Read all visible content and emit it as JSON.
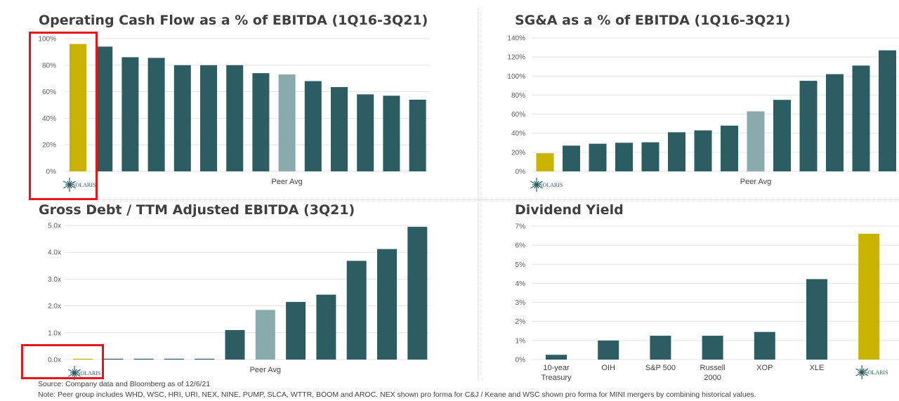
{
  "colors": {
    "peer": "#2b5d63",
    "peer_avg": "#8aabab",
    "solaris": "#c9b300",
    "grid": "#e2e2e2"
  },
  "logo_text": "SOLARIS",
  "footer": {
    "source": "Source: Company data and Bloomberg as of 12/6/21",
    "note": "Note: Peer group includes WHD, WSC, HRI, URI, NEX, NINE, PUMP, SLCA, WTTR, BOOM and AROC. NEX  shown pro forma  for C&J / Keane and WSC shown pro forma for MINI mergers by combining historical values."
  },
  "chart_data": [
    {
      "id": "ocf",
      "type": "bar",
      "title": "Operating Cash Flow as a % of EBITDA (1Q16-3Q21)",
      "categories": [
        "SOLARIS",
        "",
        "",
        "",
        "",
        "",
        "",
        "",
        "Peer Avg",
        "",
        "",
        "",
        "",
        ""
      ],
      "values": [
        96,
        94,
        86,
        85.5,
        80,
        80,
        80,
        74,
        73,
        68,
        63.5,
        58,
        57,
        54
      ],
      "kinds": [
        "solaris",
        "peer",
        "peer",
        "peer",
        "peer",
        "peer",
        "peer",
        "peer",
        "peer_avg",
        "peer",
        "peer",
        "peer",
        "peer",
        "peer"
      ],
      "ylim": [
        0,
        100
      ],
      "yticks": [
        0,
        20,
        40,
        60,
        80,
        100
      ],
      "tick_format": "{v}%",
      "grid": true
    },
    {
      "id": "sga",
      "type": "bar",
      "title": "SG&A as a % of EBITDA (1Q16-3Q21)",
      "categories": [
        "SOLARIS",
        "",
        "",
        "",
        "",
        "",
        "",
        "",
        "Peer Avg",
        "",
        "",
        "",
        "",
        ""
      ],
      "values": [
        19,
        27,
        29,
        30,
        30.5,
        41,
        43,
        48,
        63,
        75,
        95,
        102,
        111,
        127
      ],
      "kinds": [
        "solaris",
        "peer",
        "peer",
        "peer",
        "peer",
        "peer",
        "peer",
        "peer",
        "peer_avg",
        "peer",
        "peer",
        "peer",
        "peer",
        "peer"
      ],
      "ylim": [
        0,
        140
      ],
      "yticks": [
        0,
        20,
        40,
        60,
        80,
        100,
        120,
        140
      ],
      "tick_format": "{v}%",
      "grid": true
    },
    {
      "id": "debt",
      "type": "bar",
      "title": "Gross Debt / TTM Adjusted EBITDA (3Q21)",
      "categories": [
        "SOLARIS",
        "",
        "",
        "",
        "",
        "",
        "Peer Avg",
        "",
        "",
        "",
        "",
        ""
      ],
      "values": [
        0,
        0,
        0,
        0,
        0,
        1.1,
        1.85,
        2.15,
        2.42,
        3.68,
        4.12,
        4.95
      ],
      "kinds": [
        "solaris",
        "peer",
        "peer",
        "peer",
        "peer",
        "peer",
        "peer_avg",
        "peer",
        "peer",
        "peer",
        "peer",
        "peer"
      ],
      "ylim": [
        0,
        5
      ],
      "yticks": [
        0,
        1,
        2,
        3,
        4,
        5
      ],
      "tick_format": "{v}x",
      "tick_decimals": 1,
      "grid": true
    },
    {
      "id": "yield",
      "type": "bar",
      "title": "Dividend Yield",
      "categories": [
        "10-year\nTreasury",
        "OIH",
        "S&P 500",
        "Russell\n2000",
        "XOP",
        "XLE",
        "SOLARIS"
      ],
      "values": [
        0.25,
        1.0,
        1.25,
        1.25,
        1.45,
        4.22,
        6.6
      ],
      "kinds": [
        "peer",
        "peer",
        "peer",
        "peer",
        "peer",
        "peer",
        "solaris"
      ],
      "ylim": [
        0,
        7
      ],
      "yticks": [
        0,
        1,
        2,
        3,
        4,
        5,
        6,
        7
      ],
      "tick_format": "{v}%",
      "grid": true
    }
  ]
}
